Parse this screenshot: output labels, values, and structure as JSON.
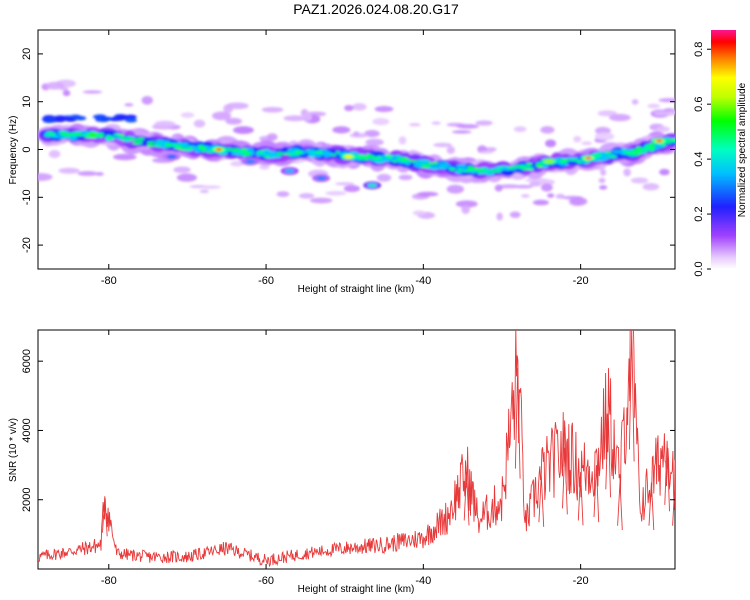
{
  "title": "PAZ1.2026.024.08.20.G17",
  "chart_data": [
    {
      "type": "heatmap",
      "xlabel": "Height of straight line (km)",
      "ylabel": "Frequency (Hz)",
      "xlim": [
        -89,
        -8
      ],
      "ylim": [
        -25,
        25
      ],
      "xticks": [
        -80,
        -60,
        -40,
        -20
      ],
      "yticks": [
        -20,
        -10,
        0,
        10,
        20
      ],
      "colorbar": {
        "label": "Normalized spectral amplitude",
        "range": [
          0,
          0.87
        ],
        "ticks": [
          "0.0",
          "0.2",
          "0.4",
          "0.6",
          "0.8"
        ],
        "tick_values": [
          0.0,
          0.2,
          0.4,
          0.6,
          0.8
        ]
      },
      "ridge": {
        "x": [
          -88,
          -85,
          -81,
          -77,
          -73,
          -70,
          -66,
          -63,
          -60,
          -56,
          -52,
          -48,
          -44,
          -40,
          -36,
          -32,
          -28,
          -25,
          -22,
          -19,
          -16,
          -13,
          -10,
          -8
        ],
        "freq": [
          3,
          3,
          3,
          2,
          1,
          0.5,
          0,
          -0.5,
          -1,
          -0.5,
          -1,
          -1.5,
          -2,
          -3,
          -4,
          -4.5,
          -4,
          -3,
          -2.5,
          -2,
          -1,
          -0.5,
          1,
          2
        ]
      },
      "hotspots": [
        {
          "x": -66,
          "freq": 0,
          "value": 0.8
        },
        {
          "x": -49.5,
          "freq": -1.5,
          "value": 0.7
        },
        {
          "x": -19,
          "freq": -1.8,
          "value": 0.87
        },
        {
          "x": -24,
          "freq": -2.5,
          "value": 0.6
        },
        {
          "x": -10,
          "freq": 1.8,
          "value": 0.85
        },
        {
          "x": -82,
          "freq": 3,
          "value": 0.55
        }
      ]
    },
    {
      "type": "line",
      "xlabel": "Height of straight line (km)",
      "ylabel": "SNR (10 * v/v)",
      "xlim": [
        -89,
        -8
      ],
      "ylim": [
        0,
        6900
      ],
      "xticks": [
        -80,
        -60,
        -40,
        -20
      ],
      "yticks": [
        2000,
        4000,
        6000
      ],
      "series": [
        {
          "name": "SNR",
          "color": "#e8393a",
          "x": [
            -89,
            -85,
            -81,
            -80.5,
            -79,
            -75,
            -70,
            -65,
            -60,
            -55,
            -50,
            -45,
            -40,
            -37,
            -34.5,
            -33,
            -30,
            -28,
            -27,
            -25,
            -22,
            -20,
            -18,
            -16.5,
            -15,
            -13.5,
            -12.5,
            -11,
            -9,
            -8
          ],
          "values": [
            350,
            500,
            700,
            2100,
            450,
            350,
            350,
            600,
            250,
            450,
            600,
            700,
            900,
            1500,
            2800,
            1400,
            2000,
            5800,
            1300,
            2700,
            3500,
            2800,
            3000,
            4600,
            2500,
            6900,
            1800,
            2500,
            3700,
            2500
          ]
        }
      ]
    }
  ]
}
